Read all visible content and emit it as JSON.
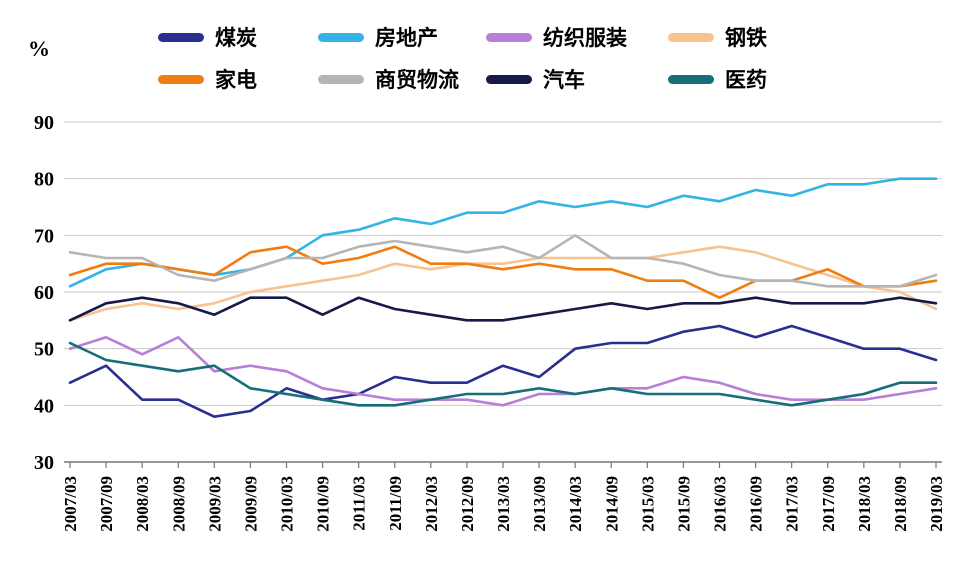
{
  "unit_label": "%",
  "chart_data": {
    "type": "line",
    "title": "",
    "xlabel": "",
    "ylabel": "%",
    "ylim": [
      30,
      90
    ],
    "yticks": [
      30,
      40,
      50,
      60,
      70,
      80,
      90
    ],
    "grid": "horizontal",
    "legend_position": "top",
    "x": [
      "2007/03",
      "2007/09",
      "2008/03",
      "2008/09",
      "2009/03",
      "2009/09",
      "2010/03",
      "2010/09",
      "2011/03",
      "2011/09",
      "2012/03",
      "2012/09",
      "2013/03",
      "2013/09",
      "2014/03",
      "2014/09",
      "2015/03",
      "2015/09",
      "2016/03",
      "2016/09",
      "2017/03",
      "2017/09",
      "2018/03",
      "2018/09",
      "2019/03"
    ],
    "series": [
      {
        "name": "煤炭",
        "slug": "coal",
        "color": "#2A2F8F",
        "values": [
          44,
          47,
          41,
          41,
          38,
          39,
          43,
          41,
          42,
          45,
          44,
          44,
          47,
          45,
          50,
          51,
          51,
          53,
          54,
          52,
          54,
          52,
          50,
          50,
          48
        ]
      },
      {
        "name": "房地产",
        "slug": "real-estate",
        "color": "#33B3E6",
        "values": [
          61,
          64,
          65,
          64,
          63,
          64,
          66,
          70,
          71,
          73,
          72,
          74,
          74,
          76,
          75,
          76,
          75,
          77,
          76,
          78,
          77,
          79,
          79,
          80,
          80
        ]
      },
      {
        "name": "纺织服装",
        "slug": "textile-apparel",
        "color": "#B77FD6",
        "values": [
          50,
          52,
          49,
          52,
          46,
          47,
          46,
          43,
          42,
          41,
          41,
          41,
          40,
          42,
          42,
          43,
          43,
          45,
          44,
          42,
          41,
          41,
          41,
          42,
          43
        ]
      },
      {
        "name": "钢铁",
        "slug": "steel",
        "color": "#F8C391",
        "values": [
          55,
          57,
          58,
          57,
          58,
          60,
          61,
          62,
          63,
          65,
          64,
          65,
          65,
          66,
          66,
          66,
          66,
          67,
          68,
          67,
          65,
          63,
          61,
          60,
          57
        ]
      },
      {
        "name": "家电",
        "slug": "home-appliance",
        "color": "#F07D12",
        "values": [
          63,
          65,
          65,
          64,
          63,
          67,
          68,
          65,
          66,
          68,
          65,
          65,
          64,
          65,
          64,
          64,
          62,
          62,
          59,
          62,
          62,
          64,
          61,
          61,
          62
        ]
      },
      {
        "name": "商贸物流",
        "slug": "commerce-logistics",
        "color": "#B5B5B5",
        "values": [
          67,
          66,
          66,
          63,
          62,
          64,
          66,
          66,
          68,
          69,
          68,
          67,
          68,
          66,
          70,
          66,
          66,
          65,
          63,
          62,
          62,
          61,
          61,
          61,
          63
        ]
      },
      {
        "name": "汽车",
        "slug": "auto",
        "color": "#161A46",
        "values": [
          55,
          58,
          59,
          58,
          56,
          59,
          59,
          56,
          59,
          57,
          56,
          55,
          55,
          56,
          57,
          58,
          57,
          58,
          58,
          59,
          58,
          58,
          58,
          59,
          58
        ]
      },
      {
        "name": "医药",
        "slug": "pharma",
        "color": "#156E78",
        "values": [
          51,
          48,
          47,
          46,
          47,
          43,
          42,
          41,
          40,
          40,
          41,
          42,
          42,
          43,
          42,
          43,
          42,
          42,
          42,
          41,
          40,
          41,
          42,
          44,
          44
        ]
      }
    ]
  }
}
